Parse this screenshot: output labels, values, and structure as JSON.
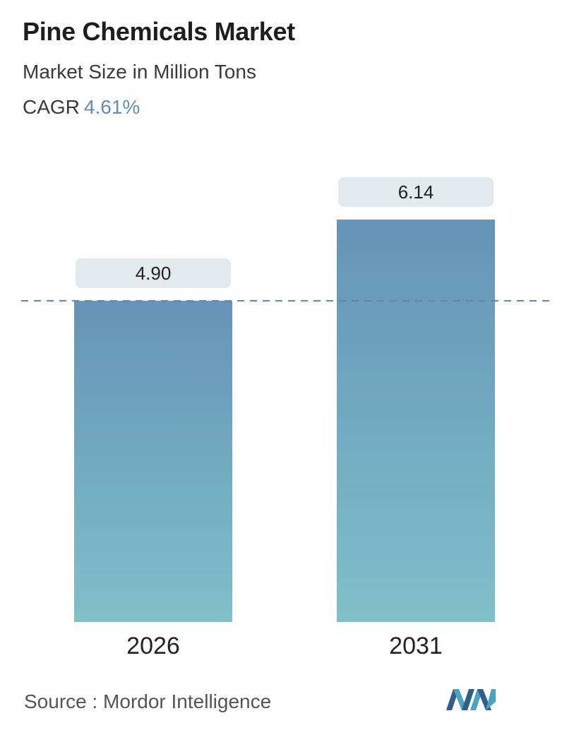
{
  "header": {
    "title": "Pine Chemicals Market",
    "subtitle": "Market Size in Million Tons",
    "cagr_label": "CAGR",
    "cagr_value": "4.61%"
  },
  "footer": {
    "source": "Source :  Mordor Intelligence",
    "logo_icon": "mordor-intelligence-logo-icon"
  },
  "colors": {
    "bar_top": "#6494b8",
    "bar_bottom": "#7fc0c8",
    "label_bg": "#e3eaec",
    "dash_line": "#5a88a8",
    "cagr_accent": "#5f8db3"
  },
  "chart_data": {
    "type": "bar",
    "categories": [
      "2026",
      "2031"
    ],
    "values": [
      4.9,
      6.14
    ],
    "value_labels": [
      "4.90",
      "6.14"
    ],
    "title": "Pine Chemicals Market",
    "subtitle": "Market Size in Million Tons",
    "xlabel": "",
    "ylabel": "",
    "ylim": [
      0,
      6.14
    ],
    "reference_line": 4.9,
    "grid": false,
    "legend": "none"
  }
}
